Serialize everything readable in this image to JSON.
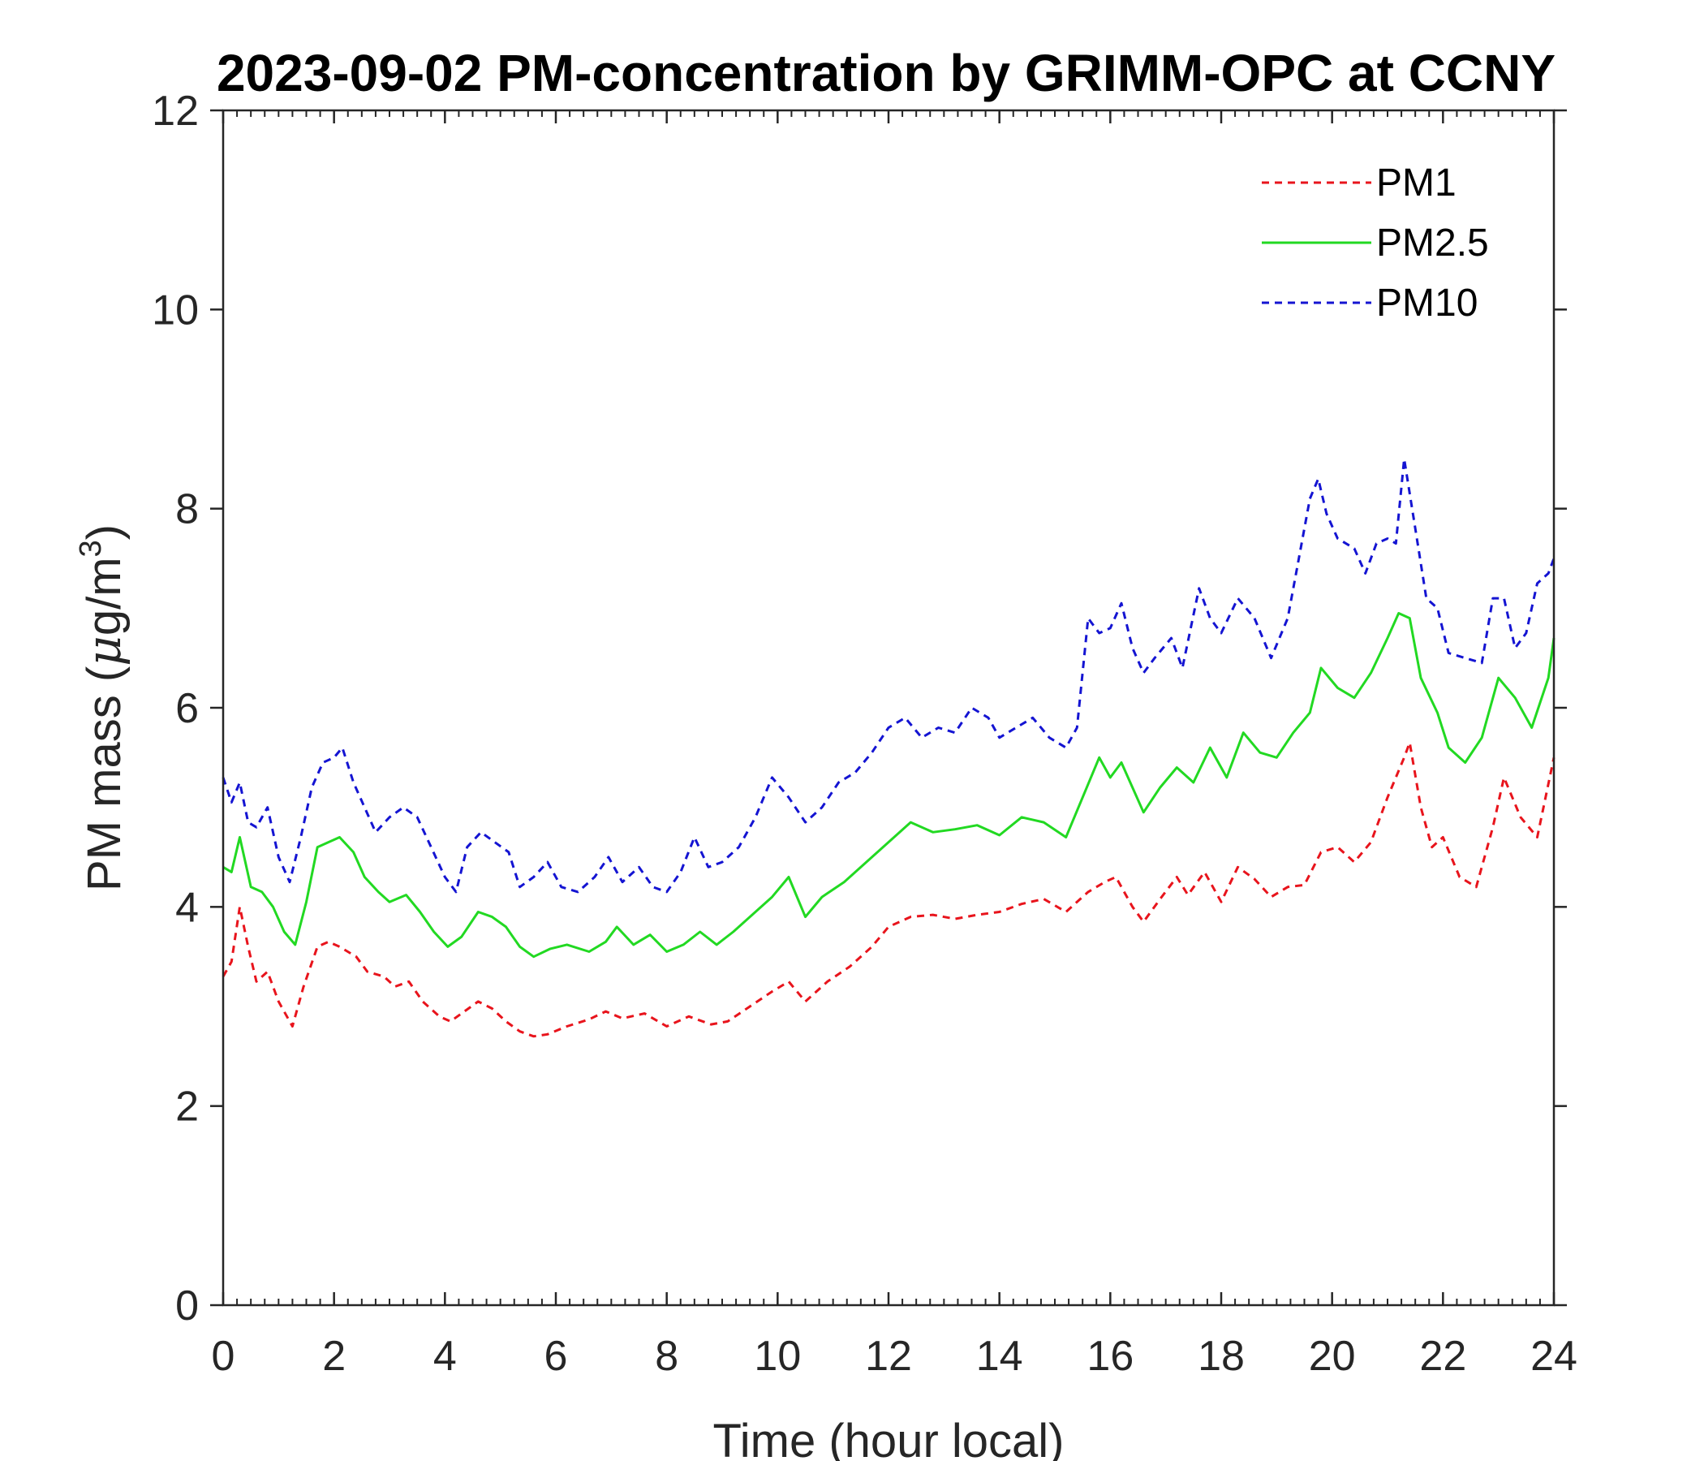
{
  "chart_data": {
    "type": "line",
    "title": "2023-09-02 PM-concentration by GRIMM-OPC at CCNY",
    "xlabel": "Time (hour local)",
    "ylabel": {
      "prefix": "PM mass (",
      "mu": "μ",
      "unit": "g/m",
      "sup": "3",
      "suffix": ")"
    },
    "xlim": [
      0,
      24
    ],
    "ylim": [
      0,
      12
    ],
    "xticks": [
      0,
      2,
      4,
      6,
      8,
      10,
      12,
      14,
      16,
      18,
      20,
      22,
      24
    ],
    "yticks": [
      0,
      2,
      4,
      6,
      8,
      10,
      12
    ],
    "grid": false,
    "legend_position": "top-right",
    "series": [
      {
        "name": "PM1",
        "color": "#e8141c",
        "dash": "dashed",
        "points": [
          [
            0,
            3.3
          ],
          [
            0.15,
            3.45
          ],
          [
            0.3,
            4.0
          ],
          [
            0.45,
            3.6
          ],
          [
            0.6,
            3.25
          ],
          [
            0.8,
            3.35
          ],
          [
            1.0,
            3.05
          ],
          [
            1.25,
            2.8
          ],
          [
            1.45,
            3.2
          ],
          [
            1.7,
            3.6
          ],
          [
            1.9,
            3.65
          ],
          [
            2.1,
            3.6
          ],
          [
            2.4,
            3.5
          ],
          [
            2.6,
            3.35
          ],
          [
            2.9,
            3.3
          ],
          [
            3.1,
            3.2
          ],
          [
            3.35,
            3.25
          ],
          [
            3.6,
            3.05
          ],
          [
            3.9,
            2.9
          ],
          [
            4.1,
            2.85
          ],
          [
            4.35,
            2.95
          ],
          [
            4.6,
            3.05
          ],
          [
            4.85,
            2.98
          ],
          [
            5.1,
            2.85
          ],
          [
            5.35,
            2.75
          ],
          [
            5.6,
            2.7
          ],
          [
            5.85,
            2.72
          ],
          [
            6.2,
            2.8
          ],
          [
            6.6,
            2.87
          ],
          [
            6.9,
            2.95
          ],
          [
            7.2,
            2.88
          ],
          [
            7.6,
            2.93
          ],
          [
            8.0,
            2.8
          ],
          [
            8.4,
            2.9
          ],
          [
            8.8,
            2.82
          ],
          [
            9.1,
            2.85
          ],
          [
            9.5,
            3.0
          ],
          [
            9.9,
            3.15
          ],
          [
            10.2,
            3.25
          ],
          [
            10.5,
            3.05
          ],
          [
            10.9,
            3.25
          ],
          [
            11.3,
            3.4
          ],
          [
            11.7,
            3.6
          ],
          [
            12.0,
            3.8
          ],
          [
            12.4,
            3.9
          ],
          [
            12.8,
            3.92
          ],
          [
            13.2,
            3.88
          ],
          [
            13.6,
            3.92
          ],
          [
            14.0,
            3.95
          ],
          [
            14.4,
            4.03
          ],
          [
            14.8,
            4.08
          ],
          [
            15.2,
            3.95
          ],
          [
            15.6,
            4.15
          ],
          [
            15.9,
            4.25
          ],
          [
            16.1,
            4.3
          ],
          [
            16.4,
            4.0
          ],
          [
            16.6,
            3.85
          ],
          [
            16.9,
            4.08
          ],
          [
            17.2,
            4.3
          ],
          [
            17.4,
            4.12
          ],
          [
            17.7,
            4.35
          ],
          [
            18.0,
            4.05
          ],
          [
            18.3,
            4.4
          ],
          [
            18.6,
            4.28
          ],
          [
            18.9,
            4.1
          ],
          [
            19.2,
            4.2
          ],
          [
            19.5,
            4.22
          ],
          [
            19.8,
            4.55
          ],
          [
            20.1,
            4.6
          ],
          [
            20.4,
            4.45
          ],
          [
            20.7,
            4.65
          ],
          [
            21.0,
            5.1
          ],
          [
            21.3,
            5.5
          ],
          [
            21.4,
            5.65
          ],
          [
            21.6,
            5.0
          ],
          [
            21.8,
            4.6
          ],
          [
            22.0,
            4.7
          ],
          [
            22.3,
            4.3
          ],
          [
            22.6,
            4.2
          ],
          [
            22.9,
            4.8
          ],
          [
            23.1,
            5.3
          ],
          [
            23.4,
            4.9
          ],
          [
            23.7,
            4.7
          ],
          [
            24.0,
            5.5
          ]
        ]
      },
      {
        "name": "PM2.5",
        "color": "#22d922",
        "dash": "solid",
        "points": [
          [
            0,
            4.4
          ],
          [
            0.15,
            4.35
          ],
          [
            0.3,
            4.7
          ],
          [
            0.5,
            4.2
          ],
          [
            0.7,
            4.15
          ],
          [
            0.9,
            4.0
          ],
          [
            1.1,
            3.75
          ],
          [
            1.3,
            3.62
          ],
          [
            1.5,
            4.05
          ],
          [
            1.7,
            4.6
          ],
          [
            1.9,
            4.65
          ],
          [
            2.1,
            4.7
          ],
          [
            2.35,
            4.55
          ],
          [
            2.55,
            4.3
          ],
          [
            2.8,
            4.15
          ],
          [
            3.0,
            4.05
          ],
          [
            3.3,
            4.12
          ],
          [
            3.55,
            3.95
          ],
          [
            3.8,
            3.75
          ],
          [
            4.05,
            3.6
          ],
          [
            4.3,
            3.7
          ],
          [
            4.6,
            3.95
          ],
          [
            4.85,
            3.9
          ],
          [
            5.1,
            3.8
          ],
          [
            5.35,
            3.6
          ],
          [
            5.6,
            3.5
          ],
          [
            5.9,
            3.58
          ],
          [
            6.2,
            3.62
          ],
          [
            6.6,
            3.55
          ],
          [
            6.9,
            3.65
          ],
          [
            7.1,
            3.8
          ],
          [
            7.4,
            3.62
          ],
          [
            7.7,
            3.72
          ],
          [
            8.0,
            3.55
          ],
          [
            8.3,
            3.62
          ],
          [
            8.6,
            3.75
          ],
          [
            8.9,
            3.62
          ],
          [
            9.2,
            3.75
          ],
          [
            9.6,
            3.95
          ],
          [
            9.9,
            4.1
          ],
          [
            10.2,
            4.3
          ],
          [
            10.5,
            3.9
          ],
          [
            10.8,
            4.1
          ],
          [
            11.2,
            4.25
          ],
          [
            11.6,
            4.45
          ],
          [
            12.0,
            4.65
          ],
          [
            12.4,
            4.85
          ],
          [
            12.8,
            4.75
          ],
          [
            13.2,
            4.78
          ],
          [
            13.6,
            4.82
          ],
          [
            14.0,
            4.72
          ],
          [
            14.4,
            4.9
          ],
          [
            14.8,
            4.85
          ],
          [
            15.2,
            4.7
          ],
          [
            15.5,
            5.1
          ],
          [
            15.8,
            5.5
          ],
          [
            16.0,
            5.3
          ],
          [
            16.2,
            5.45
          ],
          [
            16.6,
            4.95
          ],
          [
            16.9,
            5.2
          ],
          [
            17.2,
            5.4
          ],
          [
            17.5,
            5.25
          ],
          [
            17.8,
            5.6
          ],
          [
            18.1,
            5.3
          ],
          [
            18.4,
            5.75
          ],
          [
            18.7,
            5.55
          ],
          [
            19.0,
            5.5
          ],
          [
            19.3,
            5.75
          ],
          [
            19.6,
            5.95
          ],
          [
            19.8,
            6.4
          ],
          [
            20.1,
            6.2
          ],
          [
            20.4,
            6.1
          ],
          [
            20.7,
            6.35
          ],
          [
            21.0,
            6.7
          ],
          [
            21.2,
            6.95
          ],
          [
            21.4,
            6.9
          ],
          [
            21.6,
            6.3
          ],
          [
            21.9,
            5.95
          ],
          [
            22.1,
            5.6
          ],
          [
            22.4,
            5.45
          ],
          [
            22.7,
            5.7
          ],
          [
            23.0,
            6.3
          ],
          [
            23.3,
            6.1
          ],
          [
            23.6,
            5.8
          ],
          [
            23.9,
            6.3
          ],
          [
            24.0,
            6.7
          ]
        ]
      },
      {
        "name": "PM10",
        "color": "#1414d2",
        "dash": "dashed",
        "points": [
          [
            0,
            5.3
          ],
          [
            0.15,
            5.05
          ],
          [
            0.3,
            5.25
          ],
          [
            0.45,
            4.85
          ],
          [
            0.6,
            4.8
          ],
          [
            0.8,
            5.0
          ],
          [
            1.0,
            4.5
          ],
          [
            1.2,
            4.25
          ],
          [
            1.4,
            4.7
          ],
          [
            1.6,
            5.2
          ],
          [
            1.8,
            5.45
          ],
          [
            2.0,
            5.5
          ],
          [
            2.15,
            5.6
          ],
          [
            2.35,
            5.25
          ],
          [
            2.55,
            5.0
          ],
          [
            2.75,
            4.75
          ],
          [
            3.0,
            4.9
          ],
          [
            3.25,
            5.0
          ],
          [
            3.5,
            4.9
          ],
          [
            3.75,
            4.6
          ],
          [
            4.0,
            4.3
          ],
          [
            4.2,
            4.15
          ],
          [
            4.4,
            4.6
          ],
          [
            4.65,
            4.75
          ],
          [
            4.9,
            4.65
          ],
          [
            5.15,
            4.55
          ],
          [
            5.35,
            4.2
          ],
          [
            5.6,
            4.3
          ],
          [
            5.85,
            4.45
          ],
          [
            6.1,
            4.2
          ],
          [
            6.4,
            4.15
          ],
          [
            6.7,
            4.3
          ],
          [
            6.95,
            4.5
          ],
          [
            7.2,
            4.25
          ],
          [
            7.5,
            4.4
          ],
          [
            7.75,
            4.2
          ],
          [
            8.0,
            4.15
          ],
          [
            8.25,
            4.35
          ],
          [
            8.5,
            4.7
          ],
          [
            8.75,
            4.4
          ],
          [
            9.0,
            4.45
          ],
          [
            9.3,
            4.6
          ],
          [
            9.6,
            4.9
          ],
          [
            9.9,
            5.3
          ],
          [
            10.2,
            5.1
          ],
          [
            10.5,
            4.85
          ],
          [
            10.8,
            5.0
          ],
          [
            11.1,
            5.25
          ],
          [
            11.4,
            5.35
          ],
          [
            11.7,
            5.55
          ],
          [
            12.0,
            5.8
          ],
          [
            12.3,
            5.9
          ],
          [
            12.6,
            5.7
          ],
          [
            12.9,
            5.8
          ],
          [
            13.2,
            5.75
          ],
          [
            13.5,
            6.0
          ],
          [
            13.8,
            5.9
          ],
          [
            14.0,
            5.7
          ],
          [
            14.3,
            5.8
          ],
          [
            14.6,
            5.9
          ],
          [
            14.9,
            5.7
          ],
          [
            15.2,
            5.6
          ],
          [
            15.4,
            5.8
          ],
          [
            15.6,
            6.9
          ],
          [
            15.8,
            6.75
          ],
          [
            16.0,
            6.8
          ],
          [
            16.2,
            7.05
          ],
          [
            16.4,
            6.6
          ],
          [
            16.6,
            6.35
          ],
          [
            16.8,
            6.5
          ],
          [
            17.1,
            6.7
          ],
          [
            17.3,
            6.4
          ],
          [
            17.6,
            7.2
          ],
          [
            17.8,
            6.9
          ],
          [
            18.0,
            6.75
          ],
          [
            18.3,
            7.1
          ],
          [
            18.6,
            6.9
          ],
          [
            18.9,
            6.5
          ],
          [
            19.2,
            6.9
          ],
          [
            19.4,
            7.5
          ],
          [
            19.6,
            8.1
          ],
          [
            19.75,
            8.3
          ],
          [
            19.9,
            7.95
          ],
          [
            20.1,
            7.7
          ],
          [
            20.4,
            7.6
          ],
          [
            20.6,
            7.35
          ],
          [
            20.8,
            7.65
          ],
          [
            21.0,
            7.7
          ],
          [
            21.15,
            7.65
          ],
          [
            21.3,
            8.5
          ],
          [
            21.5,
            7.8
          ],
          [
            21.7,
            7.1
          ],
          [
            21.9,
            7.0
          ],
          [
            22.1,
            6.55
          ],
          [
            22.4,
            6.5
          ],
          [
            22.7,
            6.45
          ],
          [
            22.9,
            7.1
          ],
          [
            23.1,
            7.1
          ],
          [
            23.3,
            6.6
          ],
          [
            23.5,
            6.75
          ],
          [
            23.7,
            7.25
          ],
          [
            23.9,
            7.35
          ],
          [
            24.0,
            7.5
          ]
        ]
      }
    ]
  }
}
